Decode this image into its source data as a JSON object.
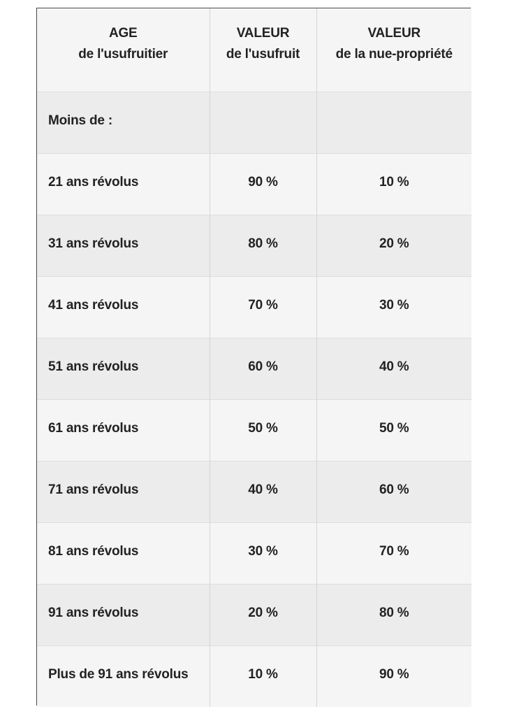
{
  "table": {
    "headers": [
      {
        "line1": "AGE",
        "line2": "de l'usufruitier"
      },
      {
        "line1": "VALEUR",
        "line2": "de l'usufruit"
      },
      {
        "line1": "VALEUR",
        "line2": "de la nue-propriété"
      }
    ],
    "rows": [
      {
        "age": "Moins de :",
        "usufruit": "",
        "nue_propriete": ""
      },
      {
        "age": "21 ans révolus",
        "usufruit": "90 %",
        "nue_propriete": "10 %"
      },
      {
        "age": "31 ans révolus",
        "usufruit": "80 %",
        "nue_propriete": "20 %"
      },
      {
        "age": "41 ans révolus",
        "usufruit": "70 %",
        "nue_propriete": "30 %"
      },
      {
        "age": "51 ans révolus",
        "usufruit": "60 %",
        "nue_propriete": "40 %"
      },
      {
        "age": "61 ans révolus",
        "usufruit": "50 %",
        "nue_propriete": "50 %"
      },
      {
        "age": "71 ans révolus",
        "usufruit": "40 %",
        "nue_propriete": "60 %"
      },
      {
        "age": "81 ans révolus",
        "usufruit": "30 %",
        "nue_propriete": "70 %"
      },
      {
        "age": "91 ans révolus",
        "usufruit": "20 %",
        "nue_propriete": "80 %"
      },
      {
        "age": "Plus de 91 ans révolus",
        "usufruit": "10 %",
        "nue_propriete": "90 %"
      }
    ]
  }
}
